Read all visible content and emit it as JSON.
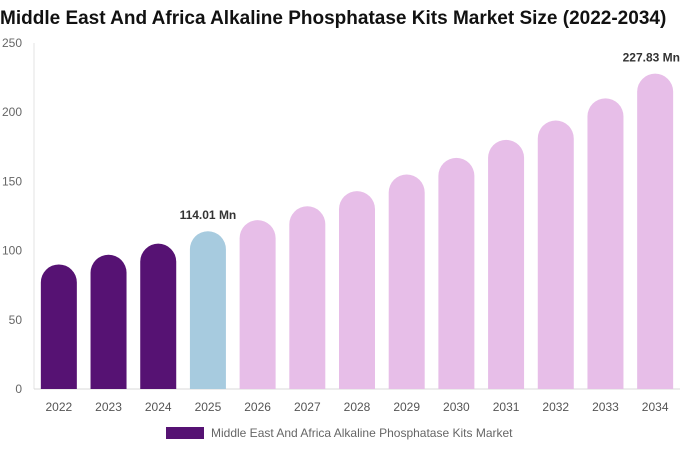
{
  "title": "Middle East And Africa Alkaline Phosphatase Kits Market Size (2022-2034)",
  "legend": {
    "label": "Middle East And Africa Alkaline Phosphatase Kits Market",
    "color": "#561273"
  },
  "colors": {
    "historical": "#561273",
    "current": "#a7cbdf",
    "forecast": "#e7bee8"
  },
  "chart_data": {
    "type": "bar",
    "categories": [
      "2022",
      "2023",
      "2024",
      "2025",
      "2026",
      "2027",
      "2028",
      "2029",
      "2030",
      "2031",
      "2032",
      "2033",
      "2034"
    ],
    "series": [
      {
        "name": "Middle East And Africa Alkaline Phosphatase Kits Market",
        "values": [
          90,
          97,
          105,
          114.01,
          122,
          132,
          143,
          155,
          167,
          180,
          194,
          210,
          227.83
        ]
      }
    ],
    "data_labels": [
      {
        "category": "2025",
        "text": "114.01 Mn"
      },
      {
        "category": "2034",
        "text": "227.83 Mn"
      }
    ],
    "ylim": [
      0,
      250
    ],
    "yticks": [
      0,
      50,
      100,
      150,
      200,
      250
    ],
    "grid": false,
    "legend_position": "bottom"
  }
}
